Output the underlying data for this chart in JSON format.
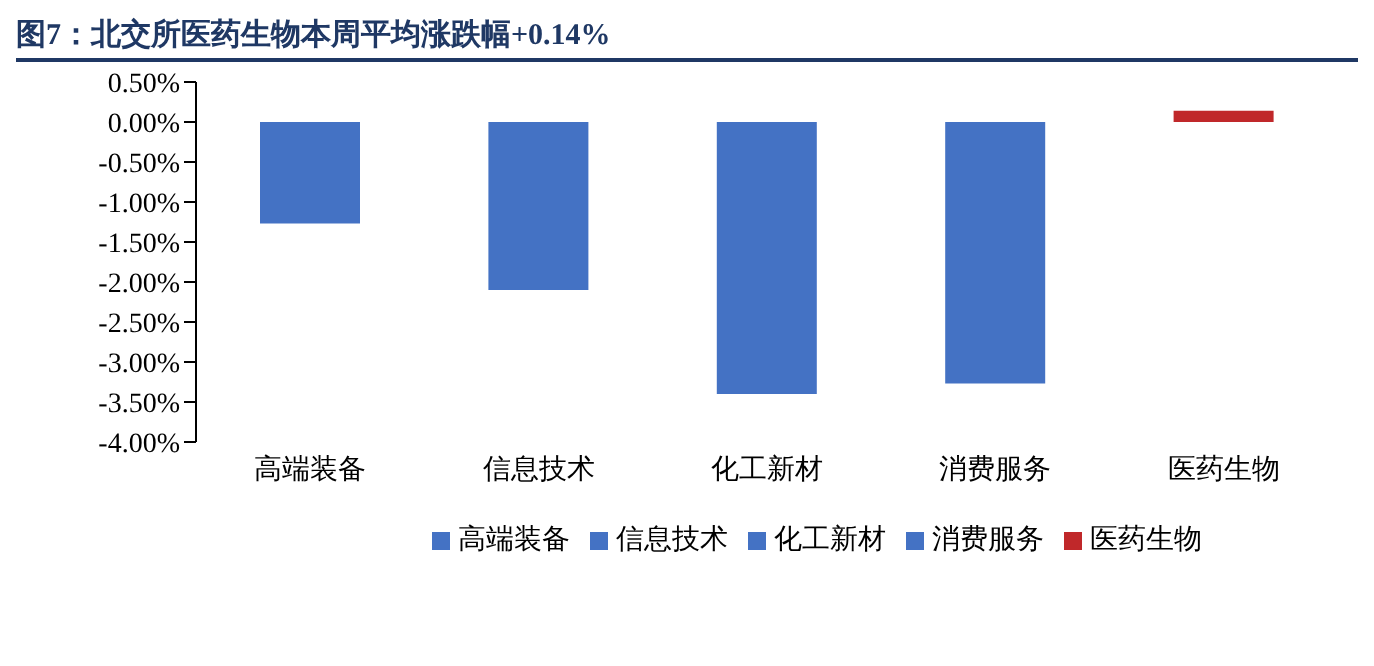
{
  "chart_data": {
    "type": "bar",
    "title": "图7：北交所医药生物本周平均涨跌幅+0.14%",
    "categories": [
      "高端装备",
      "信息技术",
      "化工新材",
      "消费服务",
      "医药生物"
    ],
    "stacked": true,
    "series": [
      {
        "name": "高端装备",
        "color": "#4472c4",
        "values": [
          -1.27,
          null,
          null,
          null,
          null
        ]
      },
      {
        "name": "信息技术",
        "color": "#4472c4",
        "values": [
          null,
          -2.1,
          null,
          null,
          null
        ]
      },
      {
        "name": "化工新材",
        "color": "#4472c4",
        "values": [
          null,
          null,
          -3.4,
          null,
          null
        ]
      },
      {
        "name": "消费服务",
        "color": "#4472c4",
        "values": [
          null,
          null,
          null,
          -3.27,
          null
        ]
      },
      {
        "name": "医药生物",
        "color": "#c0282a",
        "values": [
          null,
          null,
          null,
          null,
          0.14
        ]
      }
    ],
    "ylim": [
      -4,
      0.5
    ],
    "yticks": [
      {
        "value": -4,
        "label": "-4.00%"
      },
      {
        "value": -3.5,
        "label": "-3.50%"
      },
      {
        "value": -3,
        "label": "-3.00%"
      },
      {
        "value": -2.5,
        "label": "-2.50%"
      },
      {
        "value": -2,
        "label": "-2.00%"
      },
      {
        "value": -1.5,
        "label": "-1.50%"
      },
      {
        "value": -1,
        "label": "-1.00%"
      },
      {
        "value": -0.5,
        "label": "-0.50%"
      },
      {
        "value": 0,
        "label": "0.00%"
      },
      {
        "value": 0.5,
        "label": "0.50%"
      }
    ],
    "grid": false,
    "legend": "bottom"
  }
}
